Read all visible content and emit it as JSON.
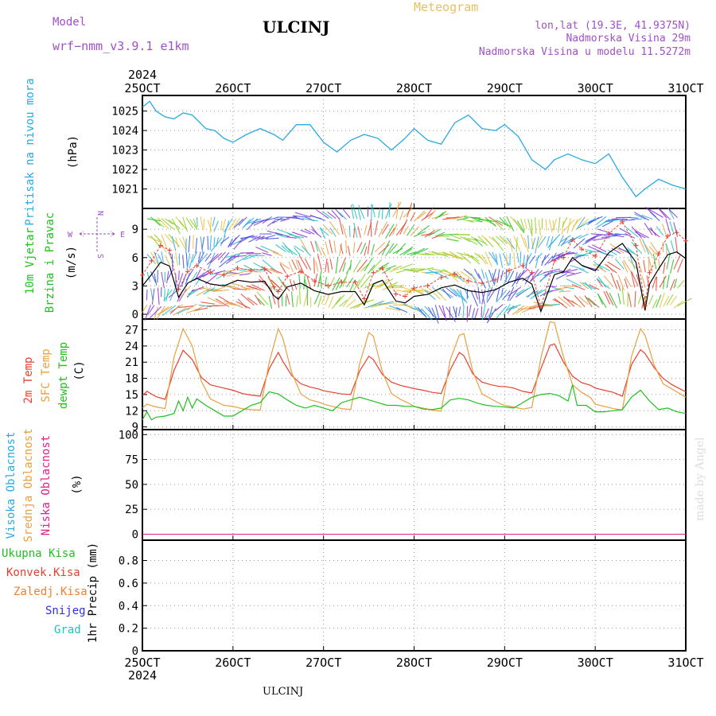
{
  "header": {
    "title": "ULCINJ",
    "meteogram_label": "Meteogram",
    "model_label": "Model",
    "model_name": "wrf−nmm_v3.9.1  e1km",
    "lonlat": "lon,lat (19.3E, 41.9375N)",
    "elevation": "Nadmorska Visina 29m",
    "model_elevation": "Nadmorska Visina u modelu 11.5272m",
    "year_top": "2024",
    "year_bottom": "2024",
    "station_bottom": "ULCINJ",
    "credit": "made by Angel"
  },
  "colors": {
    "pressure": "#29abe2",
    "t2m": "#e84030",
    "sfc": "#e8a040",
    "dew": "#20c020",
    "high_cloud": "#29abe2",
    "mid_cloud": "#e8a040",
    "low_cloud": "#e0208a",
    "total_precip": "#20c020",
    "conv_precip": "#e84030",
    "frz_precip": "#f08030",
    "snow": "#3030e0",
    "hail": "#20c0c0",
    "wind_label": "#20c020",
    "compass": "#a050c8"
  },
  "chart_data": [
    {
      "type": "line",
      "panel": "pressure",
      "ylabel": [
        "Pritisak na nivou mora",
        "(hPa)"
      ],
      "xticks": [
        "25OCT",
        "26OCT",
        "27OCT",
        "28OCT",
        "29OCT",
        "30OCT",
        "31OCT"
      ],
      "ylim": [
        1020.0,
        1025.8
      ],
      "yticks": [
        1021,
        1022,
        1023,
        1024,
        1025
      ],
      "grid": true,
      "series": [
        {
          "x": [
            0,
            0.08,
            0.15,
            0.25,
            0.35,
            0.45,
            0.55,
            0.7,
            0.8,
            0.9,
            1.0,
            1.15,
            1.3,
            1.45,
            1.55,
            1.7,
            1.85,
            2.0,
            2.15,
            2.3,
            2.45,
            2.6,
            2.75,
            2.9,
            3.0,
            3.15,
            3.3,
            3.45,
            3.6,
            3.75,
            3.9,
            4.0,
            4.15,
            4.3,
            4.45,
            4.55,
            4.7,
            4.85,
            5.0,
            5.15,
            5.3,
            5.45,
            5.55,
            5.7,
            5.85,
            6.0
          ],
          "y": [
            1025.2,
            1025.5,
            1025.0,
            1024.7,
            1024.6,
            1024.9,
            1024.8,
            1024.1,
            1024.0,
            1023.6,
            1023.4,
            1023.8,
            1024.1,
            1023.8,
            1023.5,
            1024.3,
            1024.3,
            1023.4,
            1022.9,
            1023.5,
            1023.8,
            1023.6,
            1023.0,
            1023.6,
            1024.1,
            1023.5,
            1023.3,
            1024.4,
            1024.8,
            1024.1,
            1024.0,
            1024.3,
            1023.7,
            1022.5,
            1022.0,
            1022.5,
            1022.8,
            1022.5,
            1022.3,
            1022.8,
            1021.6,
            1020.6,
            1021.0,
            1021.5,
            1021.2,
            1021.0
          ]
        }
      ]
    },
    {
      "type": "line",
      "panel": "wind",
      "ylabel": [
        "10m Vjetar",
        "Brzina i Pravac",
        "(m/s)"
      ],
      "compass": {
        "north": "N",
        "south": "S",
        "east": "E",
        "west": "W"
      },
      "ylim": [
        -0.5,
        11.2
      ],
      "yticks": [
        0,
        3,
        6,
        9
      ],
      "grid": true,
      "series": [
        {
          "x": [
            0,
            0.1,
            0.2,
            0.3,
            0.4,
            0.5,
            0.6,
            0.75,
            0.9,
            1.05,
            1.2,
            1.35,
            1.45,
            1.5,
            1.6,
            1.75,
            1.9,
            2.05,
            2.2,
            2.35,
            2.45,
            2.55,
            2.65,
            2.8,
            2.9,
            3.0,
            3.15,
            3.3,
            3.45,
            3.6,
            3.75,
            3.9,
            4.05,
            4.2,
            4.3,
            4.4,
            4.55,
            4.65,
            4.75,
            4.85,
            5.0,
            5.15,
            5.3,
            5.45,
            5.55,
            5.6,
            5.7,
            5.8,
            5.9,
            6.0
          ],
          "y": [
            3.0,
            4.2,
            5.5,
            5.1,
            1.8,
            3.3,
            3.8,
            3.2,
            3.0,
            3.6,
            3.4,
            3.5,
            2.0,
            1.6,
            2.9,
            3.3,
            2.5,
            2.1,
            2.4,
            2.4,
            1.0,
            3.2,
            3.6,
            1.4,
            1.2,
            1.9,
            2.1,
            2.8,
            3.1,
            2.5,
            2.3,
            2.6,
            3.4,
            3.8,
            3.2,
            0.3,
            4.2,
            4.5,
            6.0,
            5.2,
            4.6,
            6.5,
            7.5,
            5.5,
            0.4,
            3.2,
            4.8,
            6.3,
            6.6,
            5.9
          ]
        }
      ]
    },
    {
      "type": "line",
      "panel": "temperature",
      "ylabel": [
        "2m Temp",
        "SFC Temp",
        "dewpt Temp",
        "(C)"
      ],
      "ylim": [
        8.5,
        29
      ],
      "yticks": [
        9,
        12,
        15,
        18,
        21,
        24,
        27
      ],
      "grid": true,
      "series": [
        {
          "name": "2m Temp",
          "x": [
            0,
            0.05,
            0.15,
            0.25,
            0.35,
            0.45,
            0.55,
            0.65,
            0.75,
            0.9,
            1.0,
            1.1,
            1.2,
            1.3,
            1.4,
            1.5,
            1.55,
            1.65,
            1.75,
            1.85,
            1.95,
            2.0,
            2.1,
            2.2,
            2.3,
            2.4,
            2.5,
            2.55,
            2.65,
            2.75,
            2.85,
            2.95,
            3.0,
            3.1,
            3.2,
            3.3,
            3.4,
            3.5,
            3.55,
            3.65,
            3.75,
            3.85,
            3.95,
            4.0,
            4.1,
            4.2,
            4.3,
            4.4,
            4.5,
            4.55,
            4.65,
            4.75,
            4.85,
            4.95,
            5.0,
            5.1,
            5.2,
            5.3,
            5.4,
            5.5,
            5.55,
            5.65,
            5.75,
            5.85,
            6.0
          ],
          "y": [
            14.8,
            15.6,
            14.6,
            14.1,
            19.5,
            23.2,
            21.5,
            18.2,
            16.8,
            16.2,
            15.8,
            15.2,
            14.9,
            14.7,
            19.8,
            22.8,
            21.2,
            18.5,
            17.0,
            16.4,
            16.0,
            15.7,
            15.4,
            15.1,
            15.0,
            19.4,
            22.1,
            21.5,
            18.7,
            17.3,
            16.7,
            16.3,
            16.1,
            15.8,
            15.4,
            15.2,
            19.6,
            22.8,
            22.2,
            18.8,
            17.3,
            16.8,
            16.5,
            16.5,
            16.2,
            15.6,
            15.3,
            19.8,
            24.1,
            24.4,
            21.0,
            18.4,
            17.2,
            16.7,
            16.2,
            15.8,
            15.4,
            14.7,
            20.5,
            23.3,
            22.6,
            20.0,
            18.0,
            16.8,
            15.5
          ]
        },
        {
          "name": "SFC Temp",
          "x": [
            0,
            0.05,
            0.15,
            0.25,
            0.35,
            0.45,
            0.55,
            0.65,
            0.75,
            0.9,
            1.0,
            1.1,
            1.2,
            1.3,
            1.4,
            1.5,
            1.55,
            1.65,
            1.75,
            1.85,
            1.95,
            2.0,
            2.1,
            2.2,
            2.3,
            2.4,
            2.5,
            2.55,
            2.65,
            2.75,
            2.85,
            2.95,
            3.0,
            3.1,
            3.2,
            3.3,
            3.4,
            3.5,
            3.55,
            3.65,
            3.75,
            3.85,
            3.95,
            4.0,
            4.1,
            4.2,
            4.3,
            4.4,
            4.5,
            4.55,
            4.65,
            4.75,
            4.85,
            4.95,
            5.0,
            5.1,
            5.2,
            5.3,
            5.4,
            5.5,
            5.55,
            5.65,
            5.75,
            5.85,
            6.0
          ],
          "y": [
            12.5,
            13.2,
            12.7,
            12.4,
            22.0,
            27.2,
            24.0,
            17.5,
            14.2,
            13.0,
            12.8,
            12.4,
            12.2,
            12.1,
            21.0,
            27.2,
            25.5,
            19.0,
            15.1,
            14.0,
            13.6,
            13.2,
            12.8,
            12.4,
            12.2,
            20.8,
            26.5,
            25.8,
            19.2,
            15.2,
            14.1,
            13.3,
            12.8,
            12.5,
            12.1,
            11.9,
            21.5,
            26.0,
            26.3,
            19.2,
            15.1,
            14.2,
            13.3,
            13.0,
            12.7,
            12.3,
            12.6,
            21.8,
            28.5,
            28.3,
            22.0,
            16.8,
            15.4,
            14.4,
            13.2,
            12.8,
            12.4,
            12.1,
            22.0,
            27.2,
            26.0,
            20.5,
            17.0,
            16.0,
            14.5
          ]
        },
        {
          "name": "dewpt Temp",
          "x": [
            0,
            0.05,
            0.1,
            0.15,
            0.25,
            0.35,
            0.4,
            0.45,
            0.5,
            0.55,
            0.6,
            0.7,
            0.8,
            0.9,
            1.0,
            1.1,
            1.2,
            1.3,
            1.4,
            1.5,
            1.6,
            1.7,
            1.8,
            1.9,
            2.0,
            2.1,
            2.2,
            2.3,
            2.4,
            2.5,
            2.6,
            2.7,
            2.8,
            2.9,
            3.0,
            3.1,
            3.2,
            3.3,
            3.4,
            3.5,
            3.6,
            3.7,
            3.8,
            3.9,
            4.0,
            4.1,
            4.2,
            4.3,
            4.4,
            4.5,
            4.6,
            4.7,
            4.75,
            4.8,
            4.9,
            5.0,
            5.1,
            5.2,
            5.3,
            5.4,
            5.5,
            5.6,
            5.7,
            5.8,
            5.9,
            6.0
          ],
          "y": [
            10.3,
            11.8,
            10.3,
            10.8,
            11.0,
            11.5,
            13.8,
            12.0,
            14.5,
            12.5,
            14.2,
            13.0,
            12.0,
            11.0,
            11.0,
            12.0,
            13.0,
            13.5,
            15.5,
            15.1,
            14.0,
            13.0,
            12.5,
            13.0,
            12.5,
            12.0,
            13.5,
            14.0,
            14.5,
            14.0,
            13.5,
            13.0,
            13.0,
            12.8,
            12.8,
            12.3,
            12.2,
            12.5,
            14.0,
            14.3,
            14.0,
            13.4,
            13.0,
            12.8,
            12.7,
            12.5,
            13.5,
            14.5,
            15.0,
            15.2,
            14.8,
            13.8,
            16.8,
            13.0,
            13.0,
            11.8,
            11.8,
            12.0,
            12.2,
            14.5,
            15.8,
            13.8,
            12.2,
            12.5,
            11.8,
            11.5
          ]
        }
      ]
    },
    {
      "type": "line",
      "panel": "clouds",
      "ylabel": [
        "Visoka Oblacnost",
        "Srednja Oblacnost",
        "Niska Oblacnost",
        "(%)"
      ],
      "ylim": [
        -6,
        105
      ],
      "yticks": [
        0,
        25,
        50,
        75,
        100
      ],
      "grid": true,
      "series": [
        {
          "name": "Visoka Oblacnost",
          "x": [
            0,
            6
          ],
          "y": [
            0,
            0
          ]
        },
        {
          "name": "Srednja Oblacnost",
          "x": [
            0,
            6
          ],
          "y": [
            0,
            0
          ]
        },
        {
          "name": "Niska Oblacnost",
          "x": [
            0,
            6
          ],
          "y": [
            0,
            0
          ]
        }
      ]
    },
    {
      "type": "line",
      "panel": "precip",
      "ylabel": [
        "1hr Precip (mm)"
      ],
      "legend": [
        "Ukupna Kisa",
        "Konvek.Kisa",
        "Zaledj.Kisa",
        "Snijeg",
        "Grad"
      ],
      "ylim": [
        0,
        0.98
      ],
      "yticks": [
        0,
        0.2,
        0.4,
        0.6,
        0.8
      ],
      "ytick_labels": [
        "0",
        "0.2",
        "0.4",
        "0.6",
        "0.8"
      ],
      "grid": true,
      "xticks": [
        "25OCT",
        "26OCT",
        "27OCT",
        "28OCT",
        "29OCT",
        "30OCT",
        "31OCT"
      ],
      "series": []
    }
  ]
}
